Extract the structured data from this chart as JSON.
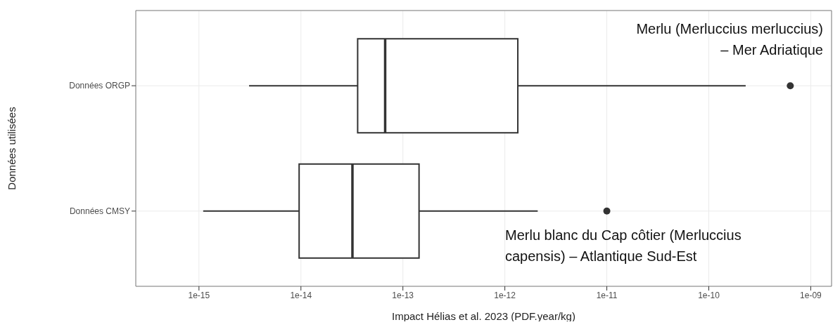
{
  "chart_data": {
    "type": "box",
    "orientation": "horizontal",
    "log": "x",
    "color": "#333333",
    "categories": [
      "Données ORGP",
      "Données CMSY"
    ],
    "boxes": [
      {
        "low": 3.1e-15,
        "q1": 3.6e-14,
        "median": 6.7e-14,
        "q3": 1.34e-12,
        "high": 2.3e-10,
        "outliers": [
          6.3e-10
        ]
      },
      {
        "low": 1.1e-15,
        "q1": 9.6e-15,
        "median": 3.2e-14,
        "q3": 1.44e-13,
        "high": 2.1e-12,
        "outliers": [
          1e-11
        ]
      }
    ],
    "xlim": [
      2.4e-16,
      1.6e-09
    ],
    "xticks": [
      {
        "value": 1e-15,
        "label": "1e-15"
      },
      {
        "value": 1e-14,
        "label": "1e-14"
      },
      {
        "value": 1e-13,
        "label": "1e-13"
      },
      {
        "value": 1e-12,
        "label": "1e-12"
      },
      {
        "value": 1e-11,
        "label": "1e-11"
      },
      {
        "value": 1e-10,
        "label": "1e-10"
      },
      {
        "value": 1e-09,
        "label": "1e-09"
      }
    ],
    "xlabel": "Impact Hélias et al. 2023 (PDF.year/kg)",
    "ylabel": "Données utilisées",
    "grid": true,
    "annotations": [
      "Merlu (Merluccius merluccius)\n– Mer Adriatique",
      "Merlu blanc du Cap côtier (Merluccius\ncapensis) – Atlantique Sud-Est"
    ]
  }
}
